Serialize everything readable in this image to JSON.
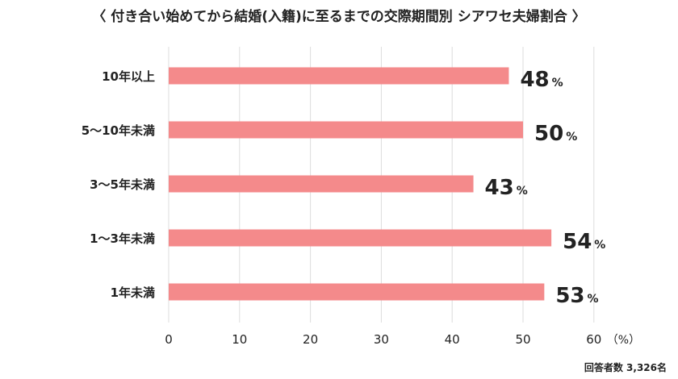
{
  "chart_data": {
    "type": "bar",
    "orientation": "horizontal",
    "title": "〈 付き合い始めてから結婚(入籍)に至るまでの交際期間別 シアワセ夫婦割合 〉",
    "categories": [
      "10年以上",
      "5〜10年未満",
      "3〜5年未満",
      "1〜3年未満",
      "1年未満"
    ],
    "values": [
      48,
      50,
      43,
      54,
      53
    ],
    "value_suffix": "%",
    "xlim": [
      0,
      60
    ],
    "xticks": [
      0,
      10,
      20,
      30,
      40,
      50,
      60
    ],
    "xunit": "（%）",
    "grid": true,
    "bar_color": "#f48a8b",
    "grid_color": "#dddddd"
  },
  "footnote": "回答者数 3,326名"
}
